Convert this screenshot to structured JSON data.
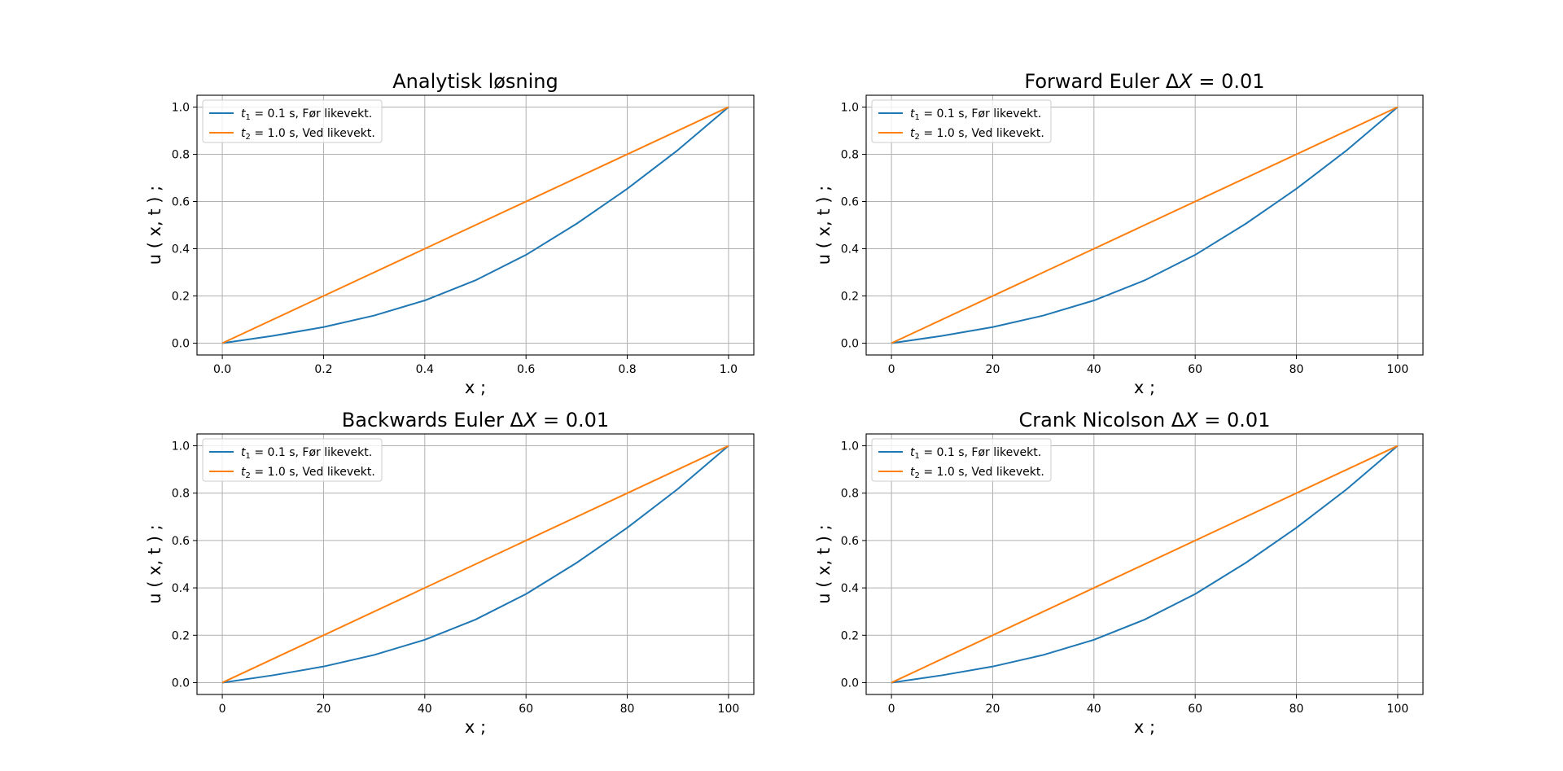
{
  "chart_data": [
    {
      "type": "line",
      "title": "Analytisk løsning",
      "title_plain": "Analytisk løsning",
      "xlabel": "x ;",
      "ylabel": "u ( x, t ) ;",
      "xlim": [
        -0.05,
        1.05
      ],
      "ylim": [
        -0.05,
        1.05
      ],
      "xticks": [
        0.0,
        0.2,
        0.4,
        0.6,
        0.8,
        1.0
      ],
      "xtick_labels": [
        "0.0",
        "0.2",
        "0.4",
        "0.6",
        "0.8",
        "1.0"
      ],
      "yticks": [
        0.0,
        0.2,
        0.4,
        0.6,
        0.8,
        1.0
      ],
      "ytick_labels": [
        "0.0",
        "0.2",
        "0.4",
        "0.6",
        "0.8",
        "1.0"
      ],
      "grid": true,
      "legend_position": "top-left",
      "series": [
        {
          "name": "t1 = 0.1 s,  Før likevekt.",
          "legend_sym": "t",
          "legend_sub": "1",
          "legend_rest": " = 0.1 s,  Før likevekt.",
          "color": "#1f77b4",
          "x": [
            0.0,
            0.1,
            0.2,
            0.3,
            0.4,
            0.5,
            0.6,
            0.7,
            0.8,
            0.9,
            1.0
          ],
          "y": [
            0.0,
            0.031,
            0.068,
            0.117,
            0.181,
            0.266,
            0.374,
            0.506,
            0.654,
            0.818,
            1.0
          ]
        },
        {
          "name": "t2 = 1.0 s,  Ved likevekt.",
          "legend_sym": "t",
          "legend_sub": "2",
          "legend_rest": " = 1.0 s,  Ved likevekt.",
          "color": "#ff7f0e",
          "x": [
            0.0,
            1.0
          ],
          "y": [
            0.0,
            1.0
          ]
        }
      ]
    },
    {
      "type": "line",
      "title": "Forward Euler ΔX = 0.01",
      "title_plain": "Forward Euler Δ",
      "title_sym": "X",
      "title_rest": " = 0.01",
      "xlabel": "x ;",
      "ylabel": "u ( x, t ) ;",
      "xlim": [
        -5,
        105
      ],
      "ylim": [
        -0.05,
        1.05
      ],
      "xticks": [
        0,
        20,
        40,
        60,
        80,
        100
      ],
      "xtick_labels": [
        "0",
        "20",
        "40",
        "60",
        "80",
        "100"
      ],
      "yticks": [
        0.0,
        0.2,
        0.4,
        0.6,
        0.8,
        1.0
      ],
      "ytick_labels": [
        "0.0",
        "0.2",
        "0.4",
        "0.6",
        "0.8",
        "1.0"
      ],
      "grid": true,
      "legend_position": "top-left",
      "series": [
        {
          "name": "t1 = 0.1 s,  Før likevekt.",
          "legend_sym": "t",
          "legend_sub": "1",
          "legend_rest": " = 0.1 s,  Før likevekt.",
          "color": "#1f77b4",
          "x": [
            0,
            10,
            20,
            30,
            40,
            50,
            60,
            70,
            80,
            90,
            100
          ],
          "y": [
            0.0,
            0.031,
            0.068,
            0.117,
            0.181,
            0.266,
            0.374,
            0.506,
            0.654,
            0.818,
            1.0
          ]
        },
        {
          "name": "t2 = 1.0 s,  Ved likevekt.",
          "legend_sym": "t",
          "legend_sub": "2",
          "legend_rest": " = 1.0 s,  Ved likevekt.",
          "color": "#ff7f0e",
          "x": [
            0,
            100
          ],
          "y": [
            0.0,
            1.0
          ]
        }
      ]
    },
    {
      "type": "line",
      "title": "Backwards Euler ΔX = 0.01",
      "title_plain": "Backwards Euler Δ",
      "title_sym": "X",
      "title_rest": " = 0.01",
      "xlabel": "x ;",
      "ylabel": "u ( x, t ) ;",
      "xlim": [
        -5,
        105
      ],
      "ylim": [
        -0.05,
        1.05
      ],
      "xticks": [
        0,
        20,
        40,
        60,
        80,
        100
      ],
      "xtick_labels": [
        "0",
        "20",
        "40",
        "60",
        "80",
        "100"
      ],
      "yticks": [
        0.0,
        0.2,
        0.4,
        0.6,
        0.8,
        1.0
      ],
      "ytick_labels": [
        "0.0",
        "0.2",
        "0.4",
        "0.6",
        "0.8",
        "1.0"
      ],
      "grid": true,
      "legend_position": "top-left",
      "series": [
        {
          "name": "t1 = 0.1 s,  Før likevekt.",
          "legend_sym": "t",
          "legend_sub": "1",
          "legend_rest": " = 0.1 s,  Før likevekt.",
          "color": "#1f77b4",
          "x": [
            0,
            10,
            20,
            30,
            40,
            50,
            60,
            70,
            80,
            90,
            100
          ],
          "y": [
            0.0,
            0.031,
            0.068,
            0.117,
            0.181,
            0.266,
            0.374,
            0.506,
            0.654,
            0.818,
            1.0
          ]
        },
        {
          "name": "t2 = 1.0 s,  Ved likevekt.",
          "legend_sym": "t",
          "legend_sub": "2",
          "legend_rest": " = 1.0 s,  Ved likevekt.",
          "color": "#ff7f0e",
          "x": [
            0,
            100
          ],
          "y": [
            0.0,
            1.0
          ]
        }
      ]
    },
    {
      "type": "line",
      "title": "Crank Nicolson ΔX = 0.01",
      "title_plain": "Crank Nicolson Δ",
      "title_sym": "X",
      "title_rest": " = 0.01",
      "xlabel": "x ;",
      "ylabel": "u ( x, t ) ;",
      "xlim": [
        -5,
        105
      ],
      "ylim": [
        -0.05,
        1.05
      ],
      "xticks": [
        0,
        20,
        40,
        60,
        80,
        100
      ],
      "xtick_labels": [
        "0",
        "20",
        "40",
        "60",
        "80",
        "100"
      ],
      "yticks": [
        0.0,
        0.2,
        0.4,
        0.6,
        0.8,
        1.0
      ],
      "ytick_labels": [
        "0.0",
        "0.2",
        "0.4",
        "0.6",
        "0.8",
        "1.0"
      ],
      "grid": true,
      "legend_position": "top-left",
      "series": [
        {
          "name": "t1 = 0.1 s,  Før likevekt.",
          "legend_sym": "t",
          "legend_sub": "1",
          "legend_rest": " = 0.1 s,  Før likevekt.",
          "color": "#1f77b4",
          "x": [
            0,
            10,
            20,
            30,
            40,
            50,
            60,
            70,
            80,
            90,
            100
          ],
          "y": [
            0.0,
            0.031,
            0.068,
            0.117,
            0.181,
            0.266,
            0.374,
            0.506,
            0.654,
            0.818,
            1.0
          ]
        },
        {
          "name": "t2 = 1.0 s,  Ved likevekt.",
          "legend_sym": "t",
          "legend_sub": "2",
          "legend_rest": " = 1.0 s,  Ved likevekt.",
          "color": "#ff7f0e",
          "x": [
            0,
            100
          ],
          "y": [
            0.0,
            1.0
          ]
        }
      ]
    }
  ]
}
